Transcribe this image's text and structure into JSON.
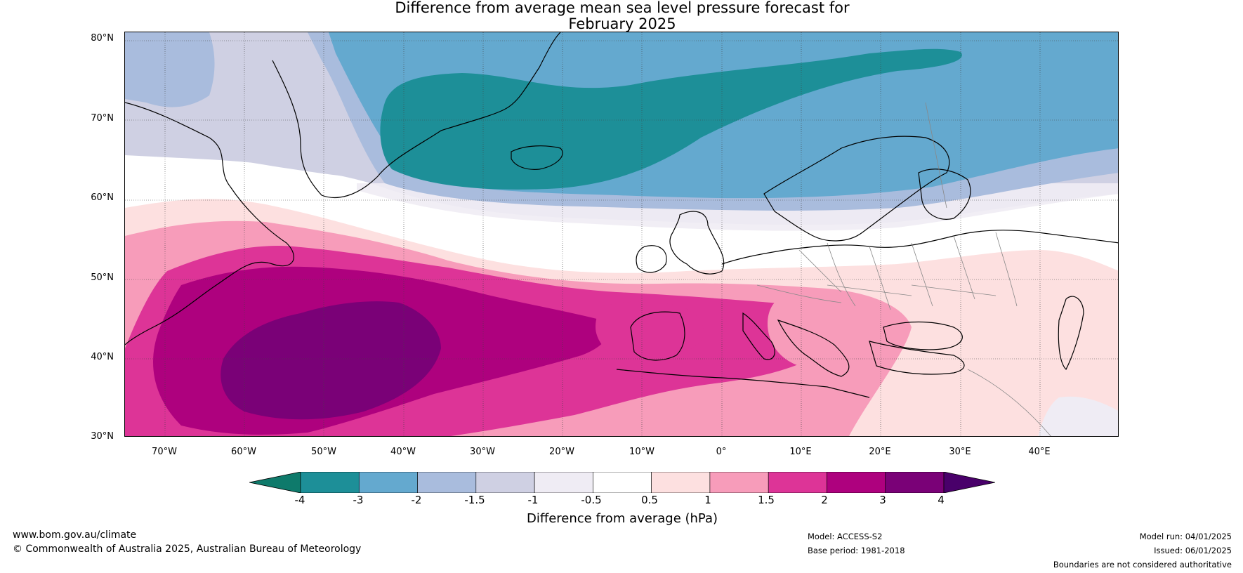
{
  "title": {
    "line1": "Difference from average mean sea level pressure forecast for",
    "line2": "February 2025"
  },
  "map": {
    "lat_labels": [
      "80°N",
      "70°N",
      "60°N",
      "50°N",
      "40°N",
      "30°N"
    ],
    "lon_labels": [
      "70°W",
      "60°W",
      "50°W",
      "40°W",
      "30°W",
      "20°W",
      "10°W",
      "0°",
      "10°E",
      "20°E",
      "30°E",
      "40°E"
    ],
    "colors": {
      "lt_-3": "#0e7a6b",
      "m3_m2": "#1d8f98",
      "m2_m15": "#64a9cf",
      "m15_m1": "#a9bcdd",
      "m1_m05": "#cfd0e3",
      "m05_0": "#efecf4",
      "neutral": "#ffffff",
      "p05_1": "#fde0e0",
      "p1_15": "#f79cba",
      "p15_2": "#dd3497",
      "p2_3": "#ae017e",
      "p3_4": "#7a0177",
      "gt_4": "#49006a"
    }
  },
  "colorbar": {
    "ticks": [
      "-4",
      "-3",
      "-2",
      "-1.5",
      "-1",
      "-0.5",
      "0.5",
      "1",
      "1.5",
      "2",
      "3",
      "4"
    ],
    "colors": [
      "#1d8f98",
      "#64a9cf",
      "#a9bcdd",
      "#cfd0e3",
      "#efecf4",
      "#ffffff",
      "#fde0e0",
      "#f79cba",
      "#dd3497",
      "#ae017e",
      "#7a0177"
    ],
    "low_color": "#0e7a6b",
    "high_color": "#49006a",
    "title": "Difference from average (hPa)"
  },
  "footer": {
    "left_url": "www.bom.gov.au/climate",
    "left_copyright": "© Commonwealth of Australia 2025, Australian Bureau of Meteorology",
    "model": "Model: ACCESS-S2",
    "base_period": "Base period: 1981-2018",
    "model_run": "Model run: 04/01/2025",
    "issued": "Issued: 06/01/2025",
    "disclaimer": "Boundaries are not considered authoritative"
  }
}
